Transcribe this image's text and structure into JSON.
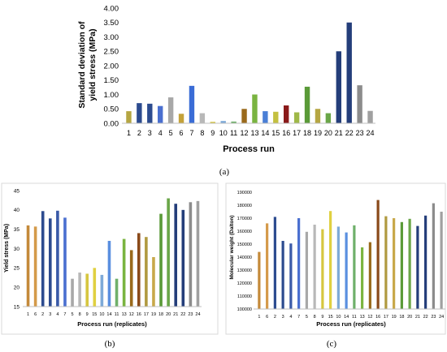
{
  "chart_data": [
    {
      "type": "bar",
      "caption": "(a)",
      "xlabel": "Process run",
      "ylabel": "Standard deviation of yield stress (MPa)",
      "ylim": [
        0,
        4
      ],
      "yticks": [
        "0.00",
        "0.50",
        "1.00",
        "1.50",
        "2.00",
        "2.50",
        "3.00",
        "3.50",
        "4.00"
      ],
      "categories": [
        "1",
        "2",
        "3",
        "4",
        "5",
        "6",
        "7",
        "8",
        "9",
        "10",
        "11",
        "12",
        "13",
        "14",
        "15",
        "16",
        "17",
        "18",
        "19",
        "20",
        "21",
        "22",
        "23",
        "24"
      ],
      "values": [
        0.42,
        0.7,
        0.68,
        0.6,
        0.9,
        0.33,
        1.3,
        0.35,
        0.05,
        0.08,
        0.06,
        0.5,
        1.0,
        0.42,
        0.4,
        0.62,
        0.38,
        1.27,
        0.5,
        0.35,
        2.5,
        3.5,
        1.32,
        0.43
      ],
      "colors": [
        "#b5a642",
        "#2c4b8f",
        "#2c4b8f",
        "#4a6fd0",
        "#a8a8a8",
        "#c4a23a",
        "#3a6cd6",
        "#b8b8b8",
        "#d6c640",
        "#7eaad8",
        "#6fb06a",
        "#9a6a1c",
        "#7ab440",
        "#4a7fd6",
        "#c4c040",
        "#8a1a1a",
        "#9fb848",
        "#5a9a38",
        "#b5a642",
        "#6aa648",
        "#243e7a",
        "#243e7a",
        "#8c8c8c",
        "#a0a0a0"
      ],
      "grid": false
    },
    {
      "type": "bar",
      "caption": "(b)",
      "xlabel": "Process run (replicates)",
      "ylabel": "Yield stress (MPa)",
      "ylim": [
        15,
        45
      ],
      "yticks": [
        "15",
        "20",
        "25",
        "30",
        "35",
        "40",
        "45"
      ],
      "categories": [
        "1",
        "6",
        "2",
        "3",
        "4",
        "7",
        "5",
        "8",
        "9",
        "15",
        "10",
        "14",
        "11",
        "13",
        "12",
        "16",
        "17",
        "19",
        "18",
        "20",
        "21",
        "22",
        "23",
        "24"
      ],
      "values": [
        36,
        35.7,
        39.7,
        37.8,
        39.8,
        38,
        22.2,
        23.8,
        23.5,
        25,
        23.2,
        32,
        22.2,
        32.5,
        29.6,
        34,
        33,
        27.8,
        39,
        43,
        41.6,
        40,
        42,
        42.3
      ],
      "colors": [
        "#c48a3a",
        "#d49a4a",
        "#2c4b8f",
        "#2c4b8f",
        "#3a5aa8",
        "#4a6fd0",
        "#a8a8a8",
        "#b8b8b8",
        "#d6c640",
        "#e0d040",
        "#7eaad8",
        "#5a8fe0",
        "#6fb06a",
        "#7ab440",
        "#9a6a1c",
        "#8a4a1a",
        "#b09a40",
        "#c8a84a",
        "#5a9a38",
        "#6aa648",
        "#243e7a",
        "#243e7a",
        "#8c8c8c",
        "#a0a0a0"
      ],
      "grid": false
    },
    {
      "type": "bar",
      "caption": "(c)",
      "xlabel": "Process run (replicates)",
      "ylabel": "Molecular weight (Dalton)",
      "ylim": [
        100000,
        190000
      ],
      "yticks": [
        "100000",
        "110000",
        "120000",
        "130000",
        "140000",
        "150000",
        "160000",
        "170000",
        "180000",
        "190000"
      ],
      "categories": [
        "1",
        "6",
        "2",
        "3",
        "4",
        "7",
        "5",
        "8",
        "9",
        "15",
        "10",
        "14",
        "11",
        "13",
        "12",
        "16",
        "17",
        "19",
        "18",
        "20",
        "21",
        "22",
        "23",
        "24"
      ],
      "values": [
        144000,
        166000,
        171000,
        152500,
        150500,
        170000,
        159500,
        165000,
        161500,
        175500,
        163500,
        159000,
        164500,
        147500,
        151500,
        184000,
        171500,
        170000,
        167000,
        169500,
        164000,
        172000,
        181500,
        175000
      ],
      "colors": [
        "#c48a3a",
        "#d49a4a",
        "#2c4b8f",
        "#2c4b8f",
        "#3a5aa8",
        "#4a6fd0",
        "#a8a8a8",
        "#b8b8b8",
        "#d6c640",
        "#e0d040",
        "#7eaad8",
        "#5a8fe0",
        "#6fb06a",
        "#7ab440",
        "#9a6a1c",
        "#8a4a1a",
        "#b09a40",
        "#c8a84a",
        "#5a9a38",
        "#6aa648",
        "#243e7a",
        "#243e7a",
        "#8c8c8c",
        "#a0a0a0"
      ],
      "grid": false
    }
  ]
}
